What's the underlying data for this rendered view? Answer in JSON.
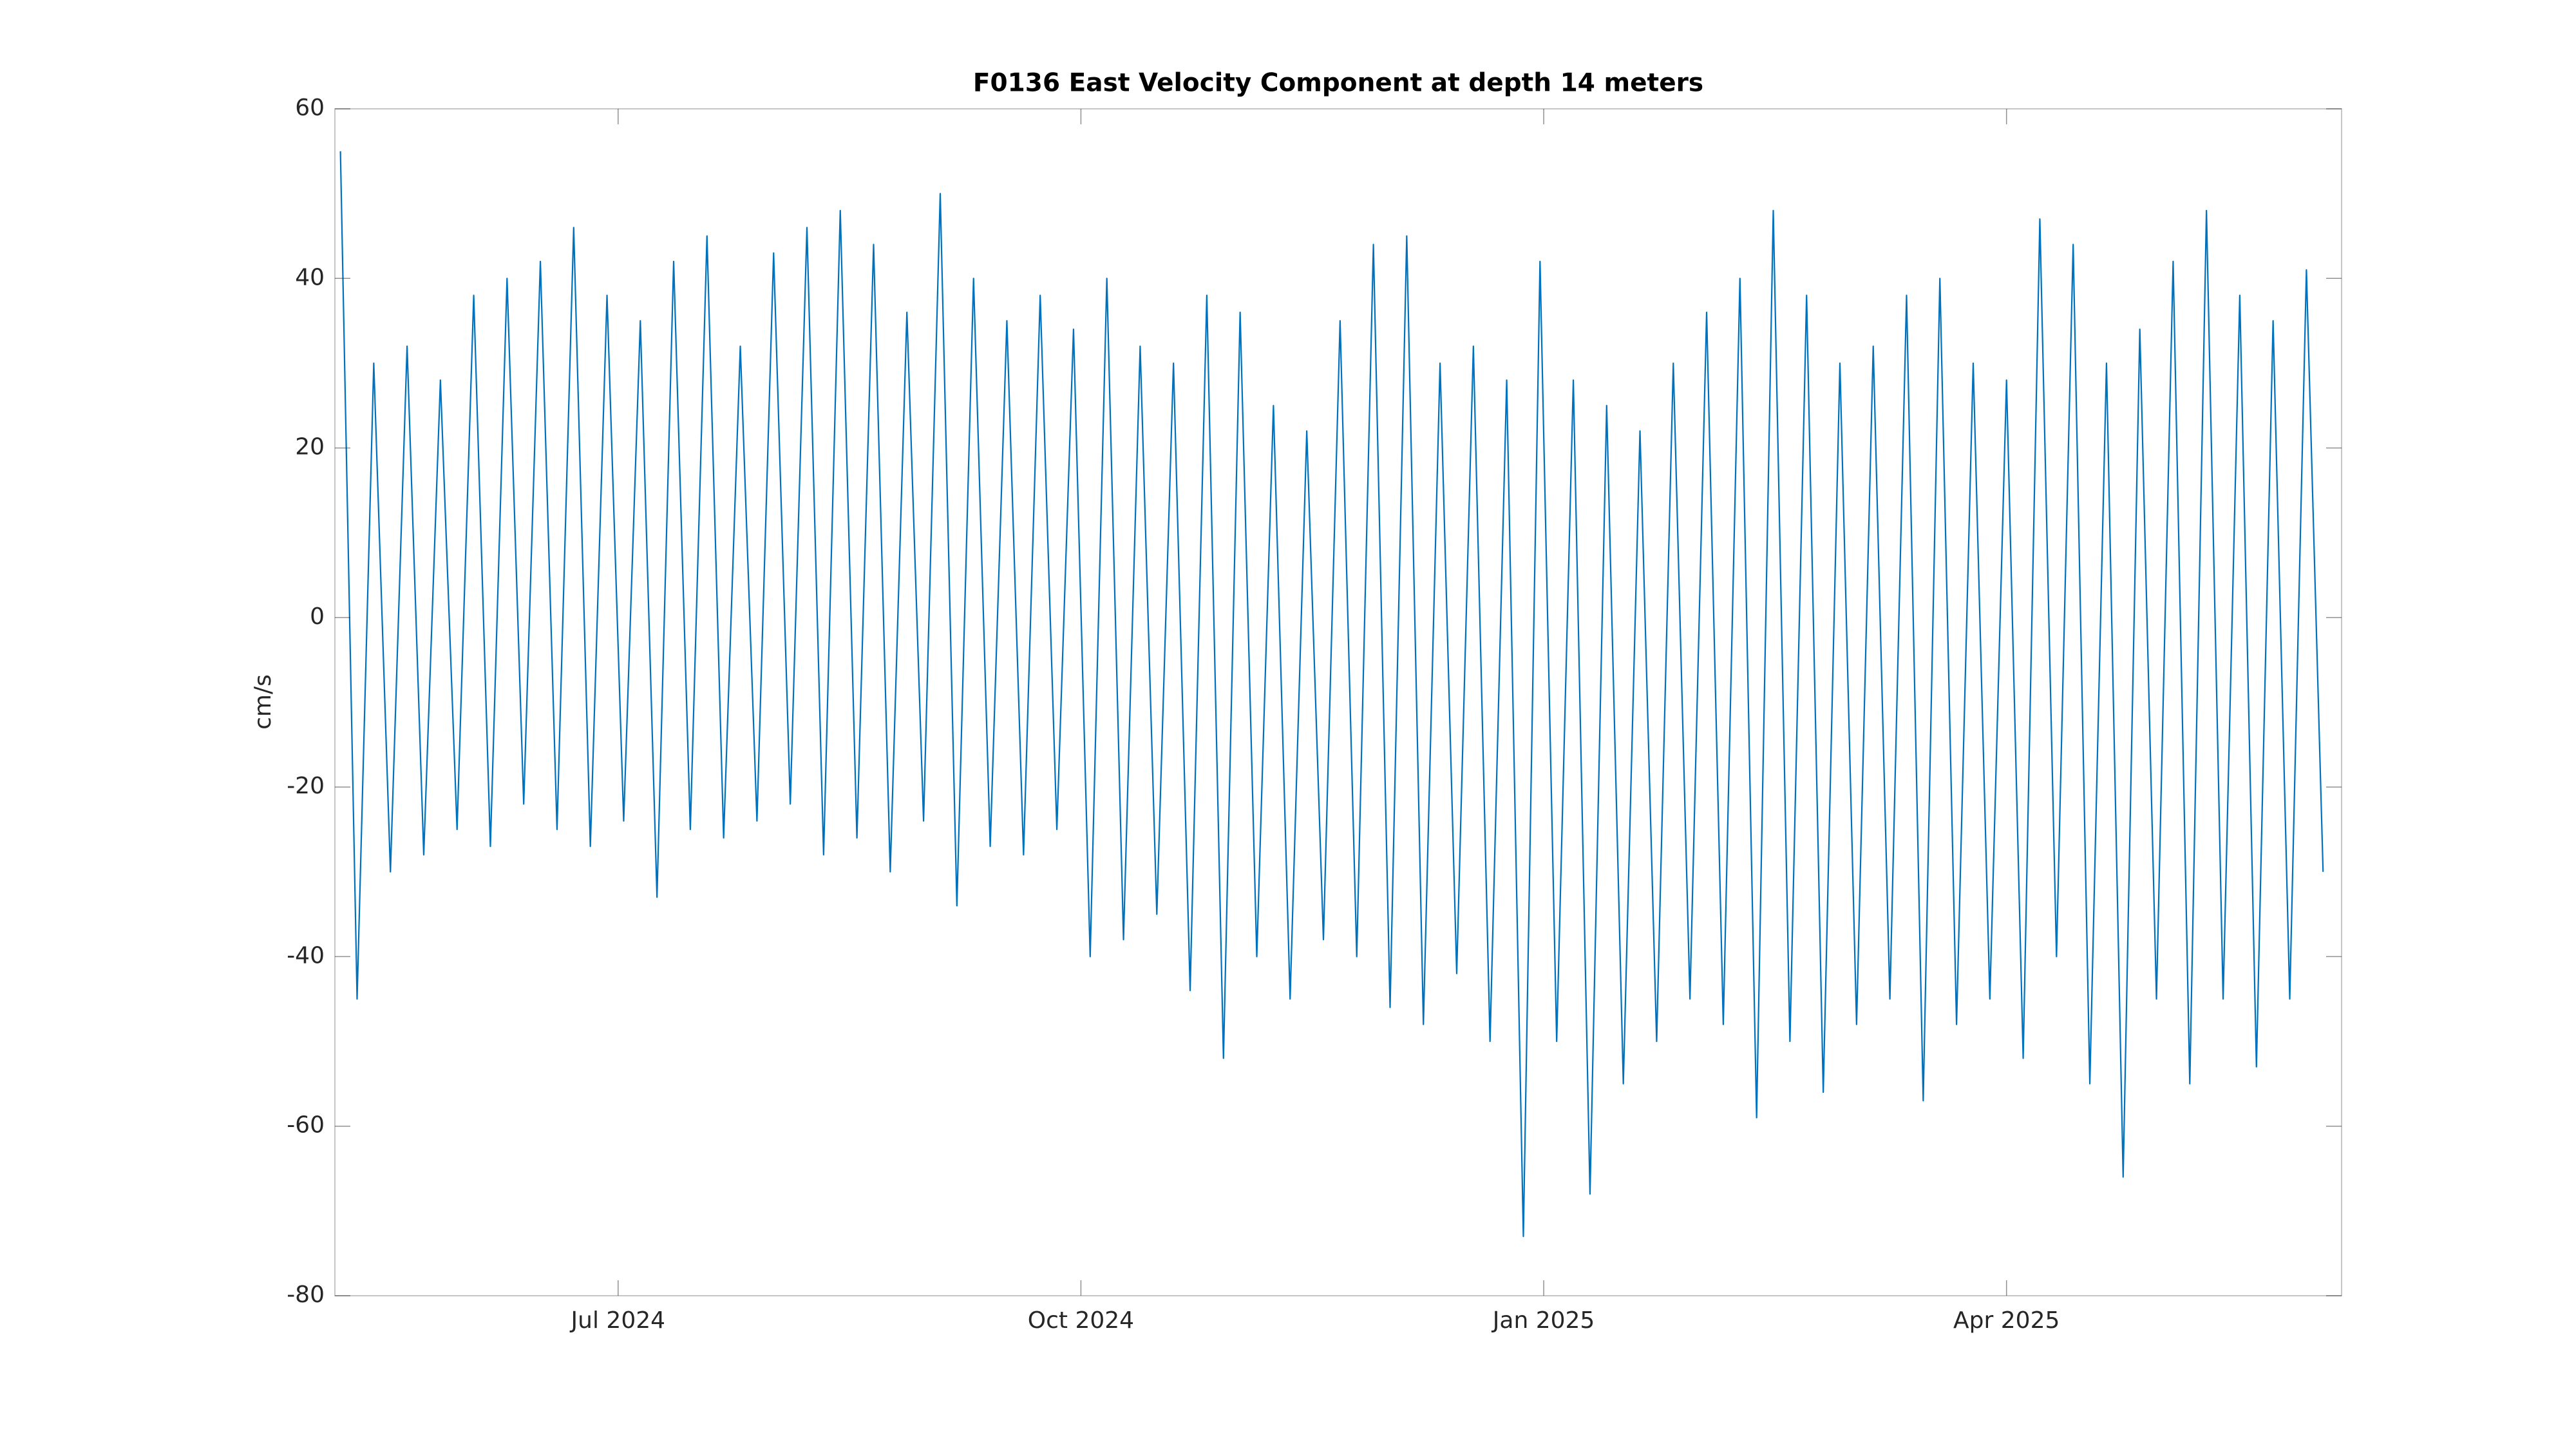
{
  "chart_data": {
    "type": "line",
    "title": "F0136 East Velocity Component at depth 14 meters",
    "ylabel": "cm/s",
    "color": "#0072bd",
    "grid": false,
    "x": [
      2024.35,
      2024.359,
      2024.368,
      2024.377,
      2024.386,
      2024.395,
      2024.404,
      2024.413,
      2024.422,
      2024.431,
      2024.44,
      2024.449,
      2024.458,
      2024.467,
      2024.476,
      2024.485,
      2024.494,
      2024.503,
      2024.512,
      2024.521,
      2024.53,
      2024.539,
      2024.548,
      2024.557,
      2024.566,
      2024.575,
      2024.584,
      2024.593,
      2024.602,
      2024.611,
      2024.62,
      2024.629,
      2024.638,
      2024.647,
      2024.656,
      2024.665,
      2024.674,
      2024.683,
      2024.692,
      2024.701,
      2024.71,
      2024.719,
      2024.728,
      2024.737,
      2024.746,
      2024.755,
      2024.764,
      2024.773,
      2024.782,
      2024.791,
      2024.8,
      2024.809,
      2024.818,
      2024.827,
      2024.836,
      2024.845,
      2024.854,
      2024.863,
      2024.872,
      2024.881,
      2024.89,
      2024.899,
      2024.908,
      2024.917,
      2024.926,
      2024.935,
      2024.944,
      2024.953,
      2024.962,
      2024.971,
      2024.98,
      2024.989,
      2024.998,
      2025.007,
      2025.016,
      2025.025,
      2025.034,
      2025.043,
      2025.052,
      2025.061,
      2025.07,
      2025.079,
      2025.088,
      2025.097,
      2025.106,
      2025.115,
      2025.124,
      2025.133,
      2025.142,
      2025.151,
      2025.16,
      2025.169,
      2025.178,
      2025.187,
      2025.196,
      2025.205,
      2025.214,
      2025.223,
      2025.232,
      2025.241,
      2025.25,
      2025.259,
      2025.268,
      2025.277,
      2025.286,
      2025.295,
      2025.304,
      2025.313,
      2025.322,
      2025.331,
      2025.34,
      2025.349,
      2025.358,
      2025.367,
      2025.376,
      2025.385,
      2025.394,
      2025.403,
      2025.412,
      2025.421
    ],
    "values": [
      55,
      -45,
      30,
      -30,
      32,
      -28,
      28,
      -25,
      38,
      -27,
      40,
      -22,
      42,
      -25,
      46,
      -27,
      38,
      -24,
      35,
      -33,
      42,
      -25,
      45,
      -26,
      32,
      -24,
      43,
      -22,
      46,
      -28,
      48,
      -26,
      44,
      -30,
      36,
      -24,
      50,
      -34,
      40,
      -27,
      35,
      -28,
      38,
      -25,
      34,
      -40,
      40,
      -38,
      32,
      -35,
      30,
      -44,
      38,
      -52,
      36,
      -40,
      25,
      -45,
      22,
      -38,
      35,
      -40,
      44,
      -46,
      45,
      -48,
      30,
      -42,
      32,
      -50,
      28,
      -73,
      42,
      -50,
      28,
      -68,
      25,
      -55,
      22,
      -50,
      30,
      -45,
      36,
      -48,
      40,
      -59,
      48,
      -50,
      38,
      -56,
      30,
      -48,
      32,
      -45,
      38,
      -57,
      40,
      -48,
      30,
      -45,
      28,
      -52,
      47,
      -40,
      44,
      -55,
      30,
      -66,
      34,
      -45,
      42,
      -55,
      48,
      -45,
      38,
      -53,
      35,
      -45,
      41,
      -30
    ],
    "xlim": [
      2024.347,
      2025.431
    ],
    "xticks": [
      {
        "value": 2024.5,
        "label": "Jul 2024"
      },
      {
        "value": 2024.75,
        "label": "Oct 2024"
      },
      {
        "value": 2025.0,
        "label": "Jan 2025"
      },
      {
        "value": 2025.25,
        "label": "Apr 2025"
      }
    ],
    "ylim": [
      -80,
      60
    ],
    "yticks": [
      -80,
      -60,
      -40,
      -20,
      0,
      20,
      40,
      60
    ]
  }
}
